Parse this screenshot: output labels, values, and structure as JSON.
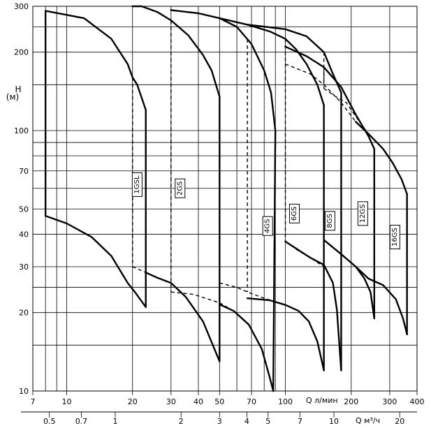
{
  "chart_data": {
    "type": "line",
    "title": "",
    "ylabel": "H",
    "ylabel_unit": "(м)",
    "xlabel": "Q л/мин",
    "x2label": "Q м³/ч",
    "x_scale": "log",
    "y_scale": "log",
    "xlim": [
      7,
      400
    ],
    "ylim": [
      10,
      300
    ],
    "grid": true,
    "x_ticks": [
      {
        "value": 7,
        "label": "7"
      },
      {
        "value": 10,
        "label": "10"
      },
      {
        "value": 20,
        "label": "20"
      },
      {
        "value": 30,
        "label": "30"
      },
      {
        "value": 40,
        "label": "40"
      },
      {
        "value": 50,
        "label": "50"
      },
      {
        "value": 70,
        "label": "70"
      },
      {
        "value": 100,
        "label": "100"
      },
      {
        "value": 200,
        "label": "200"
      },
      {
        "value": 300,
        "label": "300"
      },
      {
        "value": 400,
        "label": "400"
      }
    ],
    "x_minor_ticks": [
      8,
      9,
      60,
      80,
      90
    ],
    "x2_ticks": [
      {
        "value": 0.5,
        "label": "0.5"
      },
      {
        "value": 0.7,
        "label": "0.7"
      },
      {
        "value": 1,
        "label": "1"
      },
      {
        "value": 2,
        "label": "2"
      },
      {
        "value": 3,
        "label": "3"
      },
      {
        "value": 4,
        "label": "4"
      },
      {
        "value": 5,
        "label": "5"
      },
      {
        "value": 7,
        "label": "7"
      },
      {
        "value": 10,
        "label": "10"
      },
      {
        "value": 20,
        "label": "20"
      }
    ],
    "y_ticks": [
      {
        "value": 10,
        "label": "10"
      },
      {
        "value": 20,
        "label": "20"
      },
      {
        "value": 30,
        "label": "30"
      },
      {
        "value": 40,
        "label": "40"
      },
      {
        "value": 50,
        "label": "50"
      },
      {
        "value": 70,
        "label": "70"
      },
      {
        "value": 100,
        "label": "100"
      },
      {
        "value": 200,
        "label": "200"
      },
      {
        "value": 300,
        "label": "300"
      }
    ],
    "y_minor_ticks": [
      15,
      25,
      60,
      80,
      90,
      150,
      250
    ],
    "series": [
      {
        "name": "1GSL",
        "q_min": 8,
        "q_mid": 20,
        "q_max": 23,
        "top": [
          [
            8,
            288
          ],
          [
            12,
            270
          ],
          [
            16,
            225
          ],
          [
            19,
            180
          ],
          [
            20,
            160
          ],
          [
            21,
            150
          ],
          [
            23,
            120
          ]
        ],
        "bottom": [
          [
            8,
            47
          ],
          [
            10,
            44
          ],
          [
            13,
            39
          ],
          [
            16,
            33
          ],
          [
            19,
            26
          ],
          [
            20.5,
            24
          ],
          [
            23,
            21
          ]
        ],
        "dashed": [
          [
            20,
            30
          ],
          [
            23,
            28.5
          ],
          [
            26,
            27.2
          ],
          [
            30,
            26
          ]
        ]
      },
      {
        "name": "2GS",
        "q_min": 20,
        "q_mid": 30,
        "q_max": 50,
        "top": [
          [
            20,
            300
          ],
          [
            22,
            300
          ],
          [
            26,
            285
          ],
          [
            30,
            265
          ],
          [
            36,
            232
          ],
          [
            42,
            195
          ],
          [
            46,
            170
          ],
          [
            50,
            135
          ]
        ],
        "bottom": [
          [
            23,
            28.5
          ],
          [
            26,
            27.2
          ],
          [
            30,
            26
          ],
          [
            35,
            23
          ],
          [
            42,
            18.5
          ],
          [
            50,
            13
          ]
        ],
        "dashed": [
          [
            30,
            24
          ],
          [
            38,
            23.5
          ],
          [
            50,
            21.8
          ],
          [
            58,
            20.3
          ]
        ]
      },
      {
        "name": "4GS",
        "q_min": 30,
        "q_mid": 67,
        "q_max": 90,
        "top": [
          [
            30,
            290
          ],
          [
            40,
            282
          ],
          [
            50,
            270
          ],
          [
            60,
            250
          ],
          [
            70,
            215
          ],
          [
            80,
            170
          ],
          [
            86,
            140
          ],
          [
            90,
            100
          ]
        ],
        "bottom": [
          [
            50,
            21.5
          ],
          [
            58,
            20.3
          ],
          [
            68,
            18
          ],
          [
            78,
            14.5
          ],
          [
            85,
            11.2
          ],
          [
            88,
            10
          ]
        ],
        "dashed": [
          [
            50,
            26
          ],
          [
            60,
            25
          ],
          [
            67,
            24
          ],
          [
            80,
            22.7
          ],
          [
            100,
            21.4
          ],
          [
            115,
            20.3
          ]
        ]
      },
      {
        "name": "6GS",
        "q_min": 50,
        "q_mid": 100,
        "q_max": 150,
        "top": [
          [
            50,
            270
          ],
          [
            67,
            255
          ],
          [
            85,
            240
          ],
          [
            100,
            225
          ],
          [
            112,
            205
          ],
          [
            125,
            180
          ],
          [
            140,
            150
          ],
          [
            150,
            125
          ]
        ],
        "bottom": [
          [
            67,
            22.7
          ],
          [
            85,
            22.3
          ],
          [
            100,
            21.4
          ],
          [
            115,
            20.3
          ],
          [
            128,
            18.5
          ],
          [
            140,
            15.5
          ],
          [
            150,
            12
          ]
        ],
        "dashed": [
          [
            100,
            37.5
          ],
          [
            115,
            34.5
          ],
          [
            130,
            32.5
          ],
          [
            150,
            30
          ]
        ]
      },
      {
        "name": "8GS",
        "q_min": 67,
        "q_mid": 150,
        "q_max": 180,
        "top": [
          [
            67,
            255
          ],
          [
            100,
            245
          ],
          [
            125,
            230
          ],
          [
            150,
            200
          ],
          [
            165,
            165
          ],
          [
            180,
            140
          ]
        ],
        "bottom": [
          [
            100,
            37.5
          ],
          [
            130,
            32.5
          ],
          [
            150,
            30.5
          ],
          [
            165,
            26
          ],
          [
            172,
            20.5
          ],
          [
            180,
            12
          ]
        ],
        "dashed": [
          [
            100,
            180
          ],
          [
            130,
            165
          ],
          [
            150,
            150
          ],
          [
            180,
            128
          ],
          [
            210,
            108
          ]
        ]
      },
      {
        "name": "12GS",
        "q_min": 100,
        "q_mid": 150,
        "q_max": 255,
        "top": [
          [
            100,
            210
          ],
          [
            125,
            193
          ],
          [
            150,
            175
          ],
          [
            180,
            147
          ],
          [
            210,
            115
          ],
          [
            240,
            95
          ],
          [
            255,
            85
          ]
        ],
        "bottom": [
          [
            150,
            38
          ],
          [
            180,
            33.5
          ],
          [
            210,
            30
          ],
          [
            230,
            27
          ],
          [
            245,
            24
          ],
          [
            255,
            19
          ]
        ],
        "dashed": [
          [
            150,
            145
          ],
          [
            170,
            135
          ],
          [
            190,
            128
          ],
          [
            215,
            110
          ],
          [
            240,
            97
          ]
        ]
      },
      {
        "name": "16GS",
        "q_min": 180,
        "q_max": 360,
        "top": [
          [
            210,
            108
          ],
          [
            240,
            97
          ],
          [
            280,
            85
          ],
          [
            310,
            75
          ],
          [
            340,
            65
          ],
          [
            360,
            57
          ]
        ],
        "bottom": [
          [
            210,
            30
          ],
          [
            240,
            27
          ],
          [
            280,
            25.5
          ],
          [
            320,
            22.5
          ],
          [
            345,
            19
          ],
          [
            360,
            16.5
          ]
        ]
      }
    ],
    "series_label_positions": [
      {
        "name": "1GSL",
        "q": 21,
        "h": 62
      },
      {
        "name": "2GS",
        "q": 33,
        "h": 60
      },
      {
        "name": "4GS",
        "q": 83,
        "h": 43
      },
      {
        "name": "6GS",
        "q": 110,
        "h": 48
      },
      {
        "name": "8GS",
        "q": 160,
        "h": 45
      },
      {
        "name": "12GS",
        "q": 226,
        "h": 48
      },
      {
        "name": "16GS",
        "q": 317,
        "h": 39
      }
    ]
  }
}
